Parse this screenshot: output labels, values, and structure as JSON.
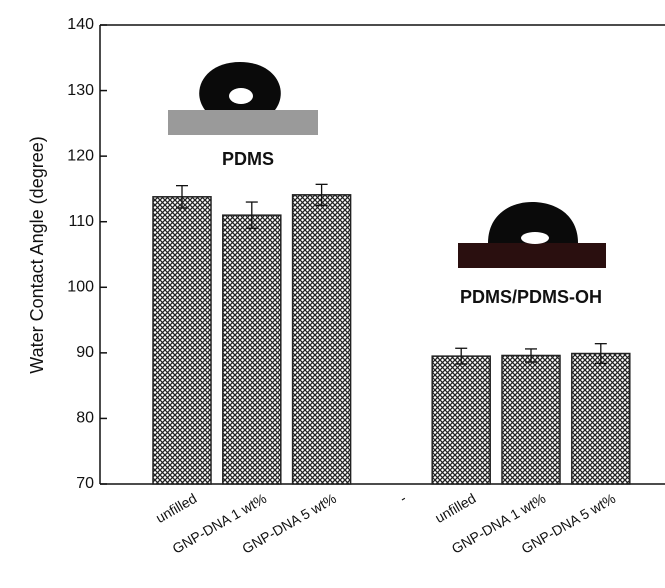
{
  "chart_data": {
    "type": "bar",
    "y_label": "Water Contact Angle (degree)",
    "categories": [
      "unfilled",
      "GNP-DNA 1 wt%",
      "GNP-DNA 5 wt%",
      "-",
      "unfilled",
      "GNP-DNA 1 wt%",
      "GNP-DNA 5 wt%"
    ],
    "values": [
      113.8,
      111.0,
      114.1,
      null,
      89.5,
      89.6,
      89.9
    ],
    "errors": [
      1.7,
      2.0,
      1.6,
      null,
      1.2,
      1.0,
      1.5
    ],
    "color": "#222222",
    "ylim": [
      70,
      140
    ],
    "yticks": [
      70,
      80,
      90,
      100,
      110,
      120,
      130,
      140
    ],
    "annotations": [
      "PDMS",
      "PDMS/PDMS-OH"
    ]
  }
}
